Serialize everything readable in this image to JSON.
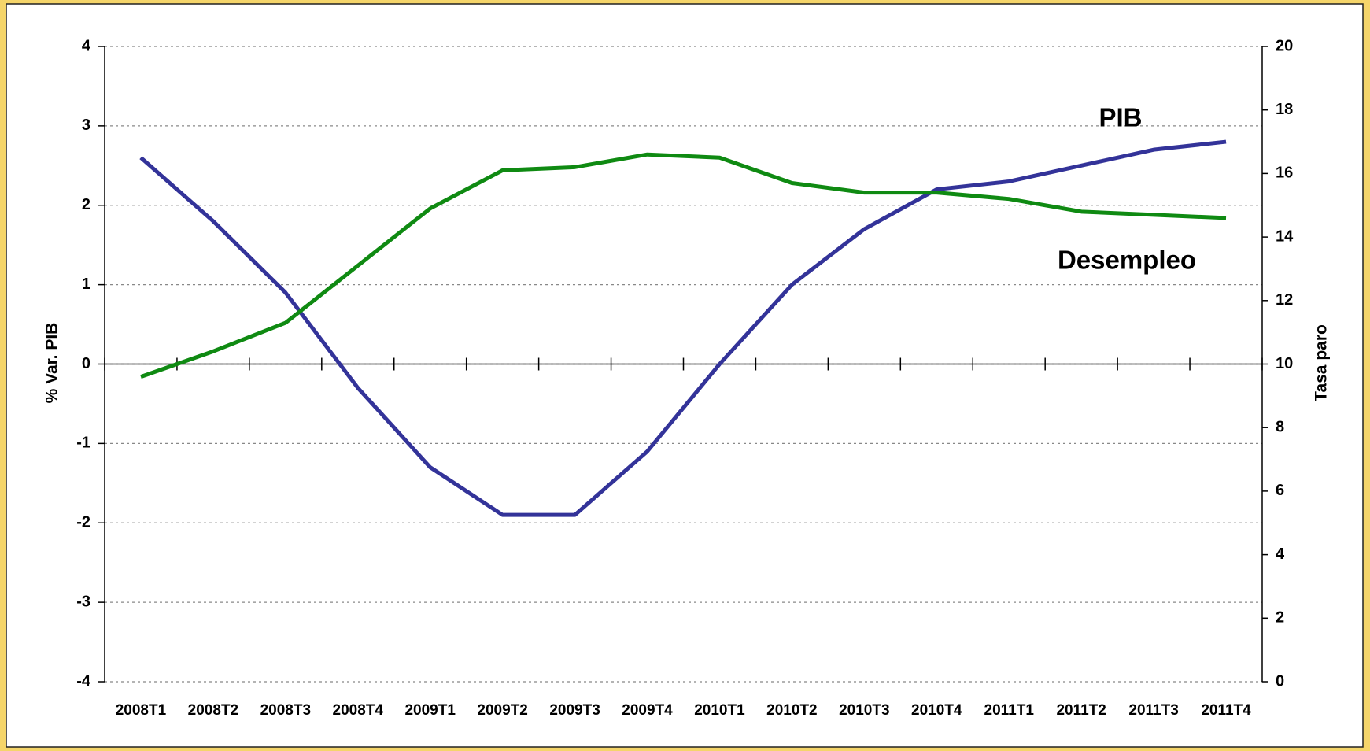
{
  "chart_data": {
    "type": "line",
    "categories": [
      "2008T1",
      "2008T2",
      "2008T3",
      "2008T4",
      "2009T1",
      "2009T2",
      "2009T3",
      "2009T4",
      "2010T1",
      "2010T2",
      "2010T3",
      "2010T4",
      "2011T1",
      "2011T2",
      "2011T3",
      "2011T4"
    ],
    "series": [
      {
        "name": "PIB",
        "color": "#333399",
        "values": [
          2.6,
          1.8,
          0.9,
          -0.3,
          -1.3,
          -1.9,
          -1.9,
          -1.1,
          0.0,
          1.0,
          1.7,
          2.2,
          2.3,
          2.5,
          2.7,
          2.8
        ]
      },
      {
        "name": "Desempleo",
        "color": "#0f8a12",
        "axis": "y2",
        "values": [
          9.6,
          10.4,
          11.3,
          13.1,
          14.9,
          16.1,
          16.2,
          16.6,
          16.5,
          15.7,
          15.4,
          15.4,
          15.2,
          14.8,
          14.7,
          14.6
        ]
      }
    ],
    "ylabel": "% Var. PIB",
    "y2label": "Tasa paro",
    "ylim": [
      -4,
      4
    ],
    "yticks": [
      -4,
      -3,
      -2,
      -1,
      0,
      1,
      2,
      3,
      4
    ],
    "y2lim": [
      0,
      20
    ],
    "y2ticks": [
      0,
      2,
      4,
      6,
      8,
      10,
      12,
      14,
      16,
      18,
      20
    ],
    "grid": true
  }
}
